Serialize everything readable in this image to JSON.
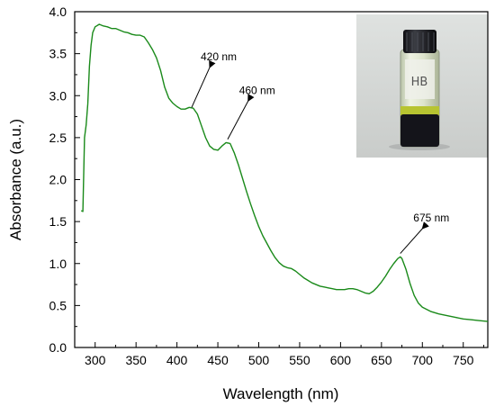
{
  "chart_data": {
    "type": "line",
    "xlabel": "Wavelength (nm)",
    "ylabel": "Absorbance (a.u.)",
    "xlim": [
      275,
      780
    ],
    "ylim": [
      0.0,
      4.0
    ],
    "x_ticks": [
      300,
      350,
      400,
      450,
      500,
      550,
      600,
      650,
      700,
      750
    ],
    "x_tick_labels": [
      "300",
      "350",
      "400",
      "450",
      "500",
      "550",
      "600",
      "650",
      "700",
      "750"
    ],
    "y_ticks": [
      0.0,
      0.5,
      1.0,
      1.5,
      2.0,
      2.5,
      3.0,
      3.5,
      4.0
    ],
    "y_tick_labels": [
      "0.0",
      "0.5",
      "1.0",
      "1.5",
      "2.0",
      "2.5",
      "3.0",
      "3.5",
      "4.0"
    ],
    "grid": false,
    "series": [
      {
        "color": "#1a8a1a",
        "points": [
          [
            283,
            1.63
          ],
          [
            285,
            1.62
          ],
          [
            287,
            2.5
          ],
          [
            289,
            2.65
          ],
          [
            291,
            2.9
          ],
          [
            293,
            3.35
          ],
          [
            295,
            3.6
          ],
          [
            297,
            3.75
          ],
          [
            300,
            3.82
          ],
          [
            305,
            3.85
          ],
          [
            310,
            3.83
          ],
          [
            315,
            3.82
          ],
          [
            320,
            3.8
          ],
          [
            325,
            3.8
          ],
          [
            330,
            3.78
          ],
          [
            335,
            3.76
          ],
          [
            340,
            3.75
          ],
          [
            345,
            3.73
          ],
          [
            350,
            3.72
          ],
          [
            355,
            3.72
          ],
          [
            360,
            3.7
          ],
          [
            365,
            3.63
          ],
          [
            370,
            3.55
          ],
          [
            375,
            3.45
          ],
          [
            380,
            3.3
          ],
          [
            385,
            3.1
          ],
          [
            390,
            2.97
          ],
          [
            395,
            2.91
          ],
          [
            400,
            2.87
          ],
          [
            405,
            2.84
          ],
          [
            410,
            2.84
          ],
          [
            415,
            2.86
          ],
          [
            420,
            2.85
          ],
          [
            425,
            2.78
          ],
          [
            430,
            2.64
          ],
          [
            435,
            2.5
          ],
          [
            440,
            2.4
          ],
          [
            445,
            2.36
          ],
          [
            450,
            2.35
          ],
          [
            455,
            2.4
          ],
          [
            460,
            2.44
          ],
          [
            465,
            2.43
          ],
          [
            470,
            2.32
          ],
          [
            475,
            2.18
          ],
          [
            480,
            2.02
          ],
          [
            485,
            1.86
          ],
          [
            490,
            1.71
          ],
          [
            495,
            1.57
          ],
          [
            500,
            1.44
          ],
          [
            505,
            1.33
          ],
          [
            510,
            1.24
          ],
          [
            515,
            1.15
          ],
          [
            520,
            1.07
          ],
          [
            525,
            1.01
          ],
          [
            530,
            0.97
          ],
          [
            535,
            0.95
          ],
          [
            540,
            0.94
          ],
          [
            545,
            0.91
          ],
          [
            550,
            0.87
          ],
          [
            555,
            0.83
          ],
          [
            560,
            0.8
          ],
          [
            565,
            0.77
          ],
          [
            570,
            0.75
          ],
          [
            575,
            0.73
          ],
          [
            580,
            0.72
          ],
          [
            585,
            0.71
          ],
          [
            590,
            0.7
          ],
          [
            595,
            0.69
          ],
          [
            600,
            0.69
          ],
          [
            605,
            0.69
          ],
          [
            610,
            0.7
          ],
          [
            615,
            0.7
          ],
          [
            620,
            0.69
          ],
          [
            625,
            0.67
          ],
          [
            630,
            0.65
          ],
          [
            635,
            0.64
          ],
          [
            640,
            0.67
          ],
          [
            645,
            0.72
          ],
          [
            650,
            0.78
          ],
          [
            655,
            0.85
          ],
          [
            660,
            0.93
          ],
          [
            665,
            1.0
          ],
          [
            670,
            1.06
          ],
          [
            673,
            1.08
          ],
          [
            675,
            1.06
          ],
          [
            680,
            0.93
          ],
          [
            685,
            0.76
          ],
          [
            690,
            0.62
          ],
          [
            695,
            0.53
          ],
          [
            700,
            0.48
          ],
          [
            710,
            0.43
          ],
          [
            720,
            0.4
          ],
          [
            730,
            0.38
          ],
          [
            740,
            0.36
          ],
          [
            750,
            0.34
          ],
          [
            760,
            0.33
          ],
          [
            770,
            0.32
          ],
          [
            780,
            0.31
          ]
        ]
      }
    ],
    "annotations": [
      {
        "text": "420 nm",
        "tip_x": 418,
        "tip_y": 2.86,
        "label_x": 440,
        "label_y": 3.4
      },
      {
        "text": "460 nm",
        "tip_x": 462,
        "tip_y": 2.48,
        "label_x": 487,
        "label_y": 3.0
      },
      {
        "text": "675 nm",
        "tip_x": 673,
        "tip_y": 1.12,
        "label_x": 700,
        "label_y": 1.48
      }
    ],
    "inset_photo": {
      "vial_label": "HB",
      "position": "top-right"
    }
  }
}
